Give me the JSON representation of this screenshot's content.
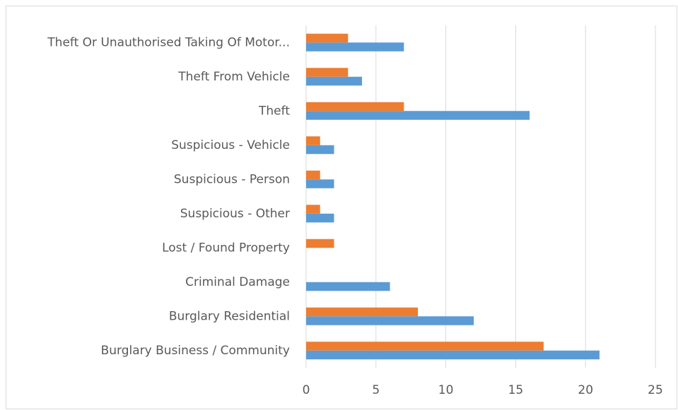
{
  "chart_data": {
    "type": "hbar",
    "categories": [
      "Burglary Business / Community",
      "Burglary Residential",
      "Criminal Damage",
      "Lost / Found Property",
      "Suspicious - Other",
      "Suspicious - Person",
      "Suspicious - Vehicle",
      "Theft",
      "Theft From Vehicle",
      "Theft Or Unauthorised Taking Of Motor..."
    ],
    "series": [
      {
        "color": "#5b9bd5",
        "values": [
          21,
          12,
          6,
          0,
          2,
          2,
          2,
          16,
          4,
          7
        ]
      },
      {
        "color": "#ed7d31",
        "values": [
          17,
          8,
          0,
          2,
          1,
          1,
          1,
          7,
          3,
          3
        ]
      }
    ],
    "xlim": [
      0,
      25
    ],
    "xticks": [
      0,
      5,
      10,
      15,
      20,
      25
    ],
    "grid": true
  }
}
